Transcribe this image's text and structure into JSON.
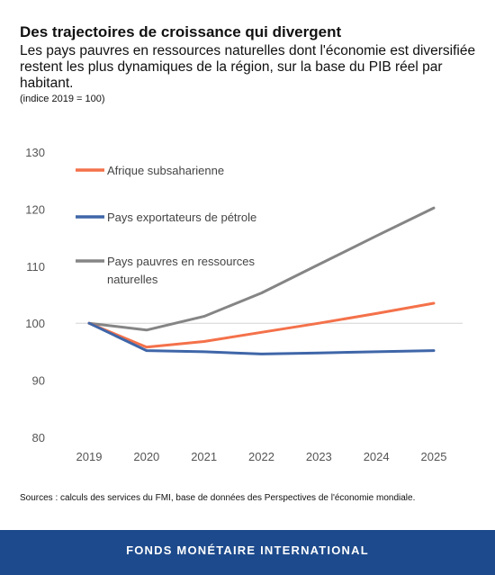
{
  "title": "Des trajectoires de croissance qui divergent",
  "subtitle": "Les pays pauvres en ressources naturelles dont l'économie est diversifiée restent les plus dynamiques de la région, sur la base du PIB réel par habitant.",
  "unit_note": "(indice 2019 = 100)",
  "source": "Sources : calculs des services du FMI, base de données des Perspectives de l'économie mondiale.",
  "footer": "FONDS MONÉTAIRE INTERNATIONAL",
  "chart_data": {
    "type": "line",
    "x": [
      "2019",
      "2020",
      "2021",
      "2022",
      "2023",
      "2024",
      "2025"
    ],
    "ylim": [
      80,
      130
    ],
    "yticks": [
      80,
      90,
      100,
      110,
      120,
      130
    ],
    "grid": false,
    "reference_line": 100,
    "legend_position": "top-left",
    "series": [
      {
        "name": "Afrique subsaharienne",
        "color": "#f4714a",
        "values": [
          100,
          95.8,
          96.8,
          98.4,
          100.0,
          101.7,
          103.5
        ]
      },
      {
        "name": "Pays exportateurs de pétrole",
        "color": "#3f66a8",
        "values": [
          100,
          95.2,
          95.0,
          94.6,
          94.8,
          95.0,
          95.2
        ]
      },
      {
        "name": "Pays pauvres en ressources naturelles",
        "name_lines": [
          "Pays pauvres en ressources",
          "naturelles"
        ],
        "color": "#858585",
        "values": [
          100,
          98.8,
          101.2,
          105.3,
          110.3,
          115.3,
          120.2
        ]
      }
    ]
  }
}
